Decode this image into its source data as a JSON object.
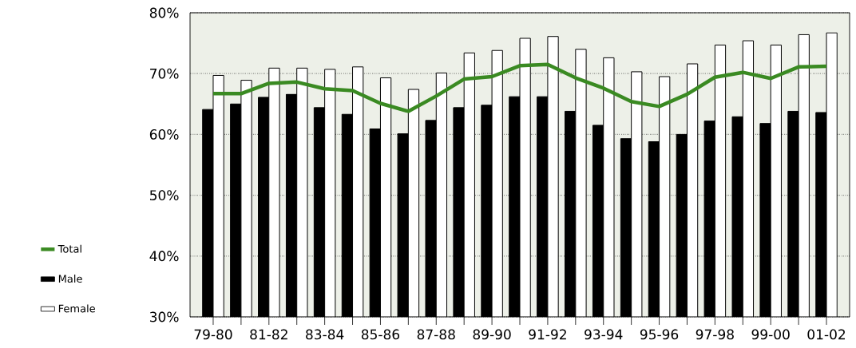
{
  "chart_data": {
    "type": "bar",
    "categories": [
      "79-80",
      null,
      "81-82",
      null,
      "83-84",
      null,
      "85-86",
      null,
      "87-88",
      null,
      "89-90",
      null,
      "91-92",
      null,
      "93-94",
      null,
      "95-96",
      null,
      "97-98",
      null,
      "99-00",
      null,
      "01-02"
    ],
    "series": [
      {
        "name": "Total",
        "type": "line",
        "color": "#3a8a22",
        "values": [
          66.7,
          66.7,
          68.4,
          68.6,
          67.5,
          67.2,
          65.1,
          63.8,
          66.3,
          69.1,
          69.5,
          71.3,
          71.5,
          69.3,
          67.6,
          65.4,
          64.6,
          66.6,
          69.4,
          70.2,
          69.2,
          71.1,
          71.2
        ]
      },
      {
        "name": "Male",
        "color": "#000000",
        "values": [
          64.1,
          65.0,
          66.1,
          66.6,
          64.4,
          63.3,
          60.9,
          60.1,
          62.3,
          64.4,
          64.8,
          66.2,
          66.2,
          63.8,
          61.5,
          59.3,
          58.8,
          60.0,
          62.2,
          62.9,
          61.8,
          63.8,
          63.6
        ]
      },
      {
        "name": "Female",
        "color": "#ffffff",
        "values": [
          69.7,
          68.9,
          70.9,
          70.9,
          70.7,
          71.1,
          69.3,
          67.4,
          70.1,
          73.4,
          73.8,
          75.8,
          76.1,
          74.0,
          72.6,
          70.3,
          69.5,
          71.6,
          74.7,
          75.4,
          74.7,
          76.4,
          76.7
        ]
      }
    ],
    "ylim": [
      30,
      80
    ],
    "yticks": [
      {
        "value": 30,
        "label": "30%"
      },
      {
        "value": 40,
        "label": "40%"
      },
      {
        "value": 50,
        "label": "50%"
      },
      {
        "value": 60,
        "label": "60%"
      },
      {
        "value": 70,
        "label": "70%"
      },
      {
        "value": 80,
        "label": "80%"
      }
    ],
    "grid": "y",
    "legend": "left",
    "marker": "none",
    "line_style": "solid"
  }
}
